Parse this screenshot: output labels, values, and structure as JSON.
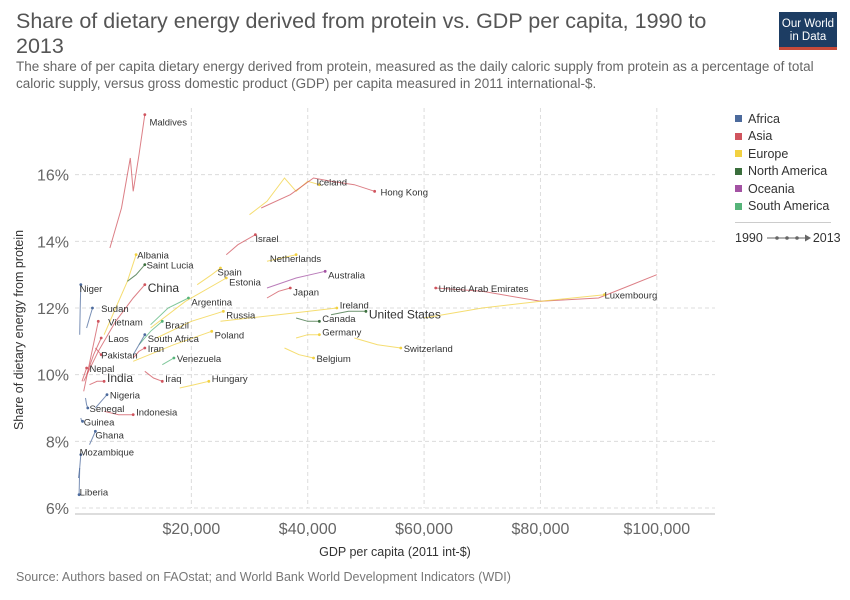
{
  "header": {
    "title": "Share of dietary energy derived from protein vs. GDP per capita, 1990 to 2013",
    "subtitle": "The share of per capita dietary energy derived from protein, measured as the daily caloric supply from protein as a percentage of total caloric supply, versus gross domestic product (GDP) per capita measured in 2011 international-$.",
    "logo_line1": "Our World",
    "logo_line2": "in Data"
  },
  "footer": {
    "source": "Source: Authors based on FAOstat; and World Bank World Development Indicators (WDI)"
  },
  "legend": {
    "items": [
      {
        "label": "Africa",
        "color": "#4c6a9c"
      },
      {
        "label": "Asia",
        "color": "#d0545e"
      },
      {
        "label": "Europe",
        "color": "#f2d141"
      },
      {
        "label": "North America",
        "color": "#3a6e3c"
      },
      {
        "label": "Oceania",
        "color": "#a352a3"
      },
      {
        "label": "South America",
        "color": "#56b479"
      }
    ],
    "time_start": "1990",
    "time_end": "2013"
  },
  "chart_data": {
    "type": "scatter",
    "xlabel": "GDP per capita (2011 int-$)",
    "ylabel": "Share of dietary energy from protein",
    "xlim": [
      0,
      110000
    ],
    "ylim": [
      6,
      18
    ],
    "x_ticks": [
      {
        "value": 20000,
        "label": "$20,000"
      },
      {
        "value": 40000,
        "label": "$40,000"
      },
      {
        "value": 60000,
        "label": "$60,000"
      },
      {
        "value": 80000,
        "label": "$80,000"
      },
      {
        "value": 100000,
        "label": "$100,000"
      }
    ],
    "y_ticks": [
      {
        "value": 6,
        "label": "6%"
      },
      {
        "value": 8,
        "label": "8%"
      },
      {
        "value": 10,
        "label": "10%"
      },
      {
        "value": 12,
        "label": "12%"
      },
      {
        "value": 14,
        "label": "14%"
      },
      {
        "value": 16,
        "label": "16%"
      }
    ],
    "grid": true,
    "legend_position": "right",
    "countries": [
      {
        "name": "Maldives",
        "region": "Asia",
        "x": 13000,
        "y": 17.8,
        "path": [
          [
            6000,
            13.8
          ],
          [
            8000,
            15.0
          ],
          [
            9500,
            16.5
          ],
          [
            10000,
            15.5
          ],
          [
            11000,
            16.6
          ],
          [
            12000,
            17.8
          ]
        ]
      },
      {
        "name": "Iceland",
        "region": "Europe",
        "x": 42000,
        "y": 15.7,
        "path": [
          [
            30000,
            14.8
          ],
          [
            33000,
            15.2
          ],
          [
            36000,
            15.9
          ],
          [
            38000,
            15.5
          ],
          [
            40000,
            15.8
          ],
          [
            42000,
            15.7
          ]
        ]
      },
      {
        "name": "Hong Kong",
        "region": "Asia",
        "x": 51500,
        "y": 15.5,
        "path": [
          [
            32000,
            15.0
          ],
          [
            37000,
            15.4
          ],
          [
            41000,
            15.9
          ],
          [
            44000,
            15.8
          ],
          [
            48000,
            15.7
          ],
          [
            51500,
            15.5
          ]
        ]
      },
      {
        "name": "Israel",
        "region": "Asia",
        "x": 31000,
        "y": 14.2,
        "path": [
          [
            26000,
            13.6
          ],
          [
            28000,
            13.9
          ],
          [
            31000,
            14.2
          ]
        ]
      },
      {
        "name": "Albania",
        "region": "Europe",
        "x": 10500,
        "y": 13.6,
        "path": [
          [
            5000,
            11.2
          ],
          [
            7000,
            12.0
          ],
          [
            9000,
            12.8
          ],
          [
            10500,
            13.6
          ]
        ]
      },
      {
        "name": "Saint Lucia",
        "region": "North America",
        "x": 12000,
        "y": 13.3,
        "path": [
          [
            9000,
            12.8
          ],
          [
            10500,
            13.0
          ],
          [
            12000,
            13.3
          ]
        ]
      },
      {
        "name": "Netherlands",
        "region": "Europe",
        "x": 38000,
        "y": 13.6,
        "path": [
          [
            33000,
            13.4
          ],
          [
            35500,
            13.5
          ],
          [
            38000,
            13.6
          ]
        ]
      },
      {
        "name": "Spain",
        "region": "Europe",
        "x": 25000,
        "y": 13.2,
        "path": [
          [
            21000,
            12.7
          ],
          [
            23500,
            13.0
          ],
          [
            25000,
            13.2
          ]
        ]
      },
      {
        "name": "Australia",
        "region": "Oceania",
        "x": 43000,
        "y": 13.1,
        "path": [
          [
            33000,
            12.6
          ],
          [
            38000,
            12.9
          ],
          [
            43000,
            13.1
          ]
        ]
      },
      {
        "name": "Niger",
        "region": "Africa",
        "x": 1000,
        "y": 12.7,
        "path": [
          [
            800,
            11.2
          ],
          [
            900,
            12.0
          ],
          [
            1000,
            12.7
          ]
        ]
      },
      {
        "name": "China",
        "region": "Asia",
        "x": 12000,
        "y": 12.7,
        "path": [
          [
            1500,
            9.8
          ],
          [
            4000,
            10.7
          ],
          [
            7000,
            11.6
          ],
          [
            10000,
            12.3
          ],
          [
            12000,
            12.7
          ]
        ]
      },
      {
        "name": "Estonia",
        "region": "Europe",
        "x": 26000,
        "y": 12.9,
        "path": [
          [
            13000,
            11.4
          ],
          [
            19000,
            12.2
          ],
          [
            26000,
            12.9
          ]
        ]
      },
      {
        "name": "Japan",
        "region": "Asia",
        "x": 37000,
        "y": 12.6,
        "path": [
          [
            33000,
            12.3
          ],
          [
            35000,
            12.5
          ],
          [
            37000,
            12.6
          ]
        ]
      },
      {
        "name": "Argentina",
        "region": "South America",
        "x": 19500,
        "y": 12.3,
        "path": [
          [
            13000,
            11.5
          ],
          [
            16000,
            12.0
          ],
          [
            19500,
            12.3
          ]
        ]
      },
      {
        "name": "United Arab Emirates",
        "region": "Asia",
        "x": 62000,
        "y": 12.6,
        "path": [
          [
            100000,
            13.0
          ],
          [
            90000,
            12.3
          ],
          [
            80000,
            12.2
          ],
          [
            70000,
            12.5
          ],
          [
            62000,
            12.6
          ]
        ]
      },
      {
        "name": "Luxembourg",
        "region": "Europe",
        "x": 91000,
        "y": 12.4,
        "path": [
          [
            60000,
            11.7
          ],
          [
            70000,
            12.0
          ],
          [
            80000,
            12.2
          ],
          [
            91000,
            12.4
          ]
        ]
      },
      {
        "name": "Ireland",
        "region": "Europe",
        "x": 45000,
        "y": 12.0,
        "path": [
          [
            25000,
            11.6
          ],
          [
            35000,
            11.8
          ],
          [
            45000,
            12.0
          ]
        ]
      },
      {
        "name": "Sudan",
        "region": "Africa",
        "x": 3000,
        "y": 12.0,
        "path": [
          [
            2000,
            11.4
          ],
          [
            2500,
            11.7
          ],
          [
            3000,
            12.0
          ]
        ]
      },
      {
        "name": "Russia",
        "region": "Europe",
        "x": 25500,
        "y": 11.9,
        "path": [
          [
            14000,
            11.1
          ],
          [
            20000,
            11.6
          ],
          [
            25500,
            11.9
          ]
        ]
      },
      {
        "name": "Canada",
        "region": "North America",
        "x": 42000,
        "y": 11.6,
        "path": [
          [
            38000,
            11.7
          ],
          [
            40000,
            11.6
          ],
          [
            42000,
            11.6
          ]
        ]
      },
      {
        "name": "United States",
        "region": "North America",
        "x": 50000,
        "y": 11.9,
        "path": [
          [
            44000,
            11.8
          ],
          [
            47000,
            11.9
          ],
          [
            50000,
            11.9
          ]
        ]
      },
      {
        "name": "Vietnam",
        "region": "Asia",
        "x": 4000,
        "y": 11.6,
        "path": [
          [
            1500,
            9.5
          ],
          [
            2800,
            10.6
          ],
          [
            4000,
            11.6
          ]
        ]
      },
      {
        "name": "Brazil",
        "region": "South America",
        "x": 15000,
        "y": 11.6,
        "path": [
          [
            11000,
            10.9
          ],
          [
            13000,
            11.3
          ],
          [
            15000,
            11.6
          ]
        ]
      },
      {
        "name": "Germany",
        "region": "Europe",
        "x": 42000,
        "y": 11.2,
        "path": [
          [
            38000,
            11.1
          ],
          [
            40000,
            11.2
          ],
          [
            42000,
            11.2
          ]
        ]
      },
      {
        "name": "Poland",
        "region": "Europe",
        "x": 23500,
        "y": 11.3,
        "path": [
          [
            10000,
            10.4
          ],
          [
            17000,
            10.9
          ],
          [
            23500,
            11.3
          ]
        ]
      },
      {
        "name": "South Africa",
        "region": "Africa",
        "x": 12000,
        "y": 11.2,
        "path": [
          [
            10000,
            10.6
          ],
          [
            11000,
            10.9
          ],
          [
            12000,
            11.2
          ]
        ]
      },
      {
        "name": "Laos",
        "region": "Asia",
        "x": 4500,
        "y": 11.1,
        "path": [
          [
            2000,
            10.0
          ],
          [
            3200,
            10.6
          ],
          [
            4500,
            11.1
          ]
        ]
      },
      {
        "name": "Iran",
        "region": "Asia",
        "x": 12000,
        "y": 10.8,
        "path": [
          [
            10000,
            10.5
          ],
          [
            11000,
            10.7
          ],
          [
            12000,
            10.8
          ]
        ]
      },
      {
        "name": "Switzerland",
        "region": "Europe",
        "x": 56000,
        "y": 10.8,
        "path": [
          [
            48000,
            11.1
          ],
          [
            52000,
            10.9
          ],
          [
            56000,
            10.8
          ]
        ]
      },
      {
        "name": "Belgium",
        "region": "Europe",
        "x": 41000,
        "y": 10.5,
        "path": [
          [
            36000,
            10.8
          ],
          [
            38500,
            10.6
          ],
          [
            41000,
            10.5
          ]
        ]
      },
      {
        "name": "Venezuela",
        "region": "South America",
        "x": 17000,
        "y": 10.5,
        "path": [
          [
            15000,
            10.3
          ],
          [
            16000,
            10.4
          ],
          [
            17000,
            10.5
          ]
        ]
      },
      {
        "name": "Pakistan",
        "region": "Asia",
        "x": 4500,
        "y": 10.6,
        "path": [
          [
            3500,
            10.8
          ],
          [
            4000,
            10.7
          ],
          [
            4500,
            10.6
          ]
        ]
      },
      {
        "name": "Nepal",
        "region": "Asia",
        "x": 2000,
        "y": 10.2,
        "path": [
          [
            1200,
            9.8
          ],
          [
            1600,
            10.0
          ],
          [
            2000,
            10.2
          ]
        ]
      },
      {
        "name": "Iraq",
        "region": "Asia",
        "x": 15000,
        "y": 9.8,
        "path": [
          [
            12000,
            10.1
          ],
          [
            13500,
            9.9
          ],
          [
            15000,
            9.8
          ]
        ]
      },
      {
        "name": "Hungary",
        "region": "Europe",
        "x": 23000,
        "y": 9.8,
        "path": [
          [
            18000,
            9.6
          ],
          [
            20500,
            9.7
          ],
          [
            23000,
            9.8
          ]
        ]
      },
      {
        "name": "India",
        "region": "Asia",
        "x": 5000,
        "y": 9.8,
        "path": [
          [
            2500,
            9.7
          ],
          [
            3800,
            9.8
          ],
          [
            5000,
            9.8
          ]
        ]
      },
      {
        "name": "Nigeria",
        "region": "Africa",
        "x": 5500,
        "y": 9.4,
        "path": [
          [
            3500,
            9.0
          ],
          [
            4500,
            9.2
          ],
          [
            5500,
            9.4
          ]
        ]
      },
      {
        "name": "Senegal",
        "region": "Africa",
        "x": 2200,
        "y": 9.0,
        "path": [
          [
            1800,
            9.3
          ],
          [
            2000,
            9.1
          ],
          [
            2200,
            9.0
          ]
        ]
      },
      {
        "name": "Indonesia",
        "region": "Asia",
        "x": 10000,
        "y": 8.8,
        "path": [
          [
            5000,
            8.9
          ],
          [
            7500,
            8.8
          ],
          [
            10000,
            8.8
          ]
        ]
      },
      {
        "name": "Guinea",
        "region": "Africa",
        "x": 1300,
        "y": 8.6,
        "path": [
          [
            1000,
            8.7
          ],
          [
            1150,
            8.6
          ],
          [
            1300,
            8.6
          ]
        ]
      },
      {
        "name": "Ghana",
        "region": "Africa",
        "x": 3500,
        "y": 8.3,
        "path": [
          [
            2500,
            7.9
          ],
          [
            3000,
            8.1
          ],
          [
            3500,
            8.3
          ]
        ]
      },
      {
        "name": "Mozambique",
        "region": "Africa",
        "x": 1000,
        "y": 7.6,
        "path": [
          [
            600,
            6.9
          ],
          [
            800,
            7.2
          ],
          [
            1000,
            7.6
          ]
        ]
      },
      {
        "name": "Liberia",
        "region": "Africa",
        "x": 700,
        "y": 6.4,
        "path": [
          [
            800,
            7.2
          ],
          [
            750,
            6.8
          ],
          [
            700,
            6.4
          ]
        ]
      }
    ],
    "label_positions": {
      "Maldives": [
        12800,
        17.6
      ],
      "Iceland": [
        41500,
        15.8
      ],
      "Hong Kong": [
        52500,
        15.5
      ],
      "Israel": [
        31000,
        14.1
      ],
      "Albania": [
        10700,
        13.6
      ],
      "Saint Lucia": [
        12300,
        13.3
      ],
      "Netherlands": [
        33500,
        13.5
      ],
      "Spain": [
        24500,
        13.1
      ],
      "Australia": [
        43500,
        13.0
      ],
      "Niger": [
        800,
        12.6
      ],
      "China": [
        12500,
        12.6
      ],
      "Estonia": [
        26500,
        12.8
      ],
      "Japan": [
        37500,
        12.5
      ],
      "Argentina": [
        20000,
        12.2
      ],
      "United Arab Emirates": [
        62500,
        12.6
      ],
      "Luxembourg": [
        91000,
        12.4
      ],
      "Ireland": [
        45500,
        12.1
      ],
      "Sudan": [
        4500,
        12.0
      ],
      "Russia": [
        26000,
        11.8
      ],
      "Canada": [
        42500,
        11.7
      ],
      "United States": [
        50500,
        11.8
      ],
      "Vietnam": [
        5700,
        11.6
      ],
      "Brazil": [
        15500,
        11.5
      ],
      "Germany": [
        42500,
        11.3
      ],
      "Poland": [
        24000,
        11.2
      ],
      "South Africa": [
        12500,
        11.1
      ],
      "Laos": [
        5700,
        11.1
      ],
      "Iran": [
        12500,
        10.8
      ],
      "Switzerland": [
        56500,
        10.8
      ],
      "Belgium": [
        41500,
        10.5
      ],
      "Venezuela": [
        17500,
        10.5
      ],
      "Pakistan": [
        4500,
        10.6
      ],
      "Nepal": [
        2500,
        10.2
      ],
      "Iraq": [
        15500,
        9.9
      ],
      "Hungary": [
        23500,
        9.9
      ],
      "India": [
        5500,
        9.9
      ],
      "Nigeria": [
        6000,
        9.4
      ],
      "Senegal": [
        2500,
        9.0
      ],
      "Indonesia": [
        10500,
        8.9
      ],
      "Guinea": [
        1500,
        8.6
      ],
      "Ghana": [
        3500,
        8.2
      ],
      "Mozambique": [
        800,
        7.7
      ],
      "Liberia": [
        800,
        6.5
      ]
    }
  }
}
